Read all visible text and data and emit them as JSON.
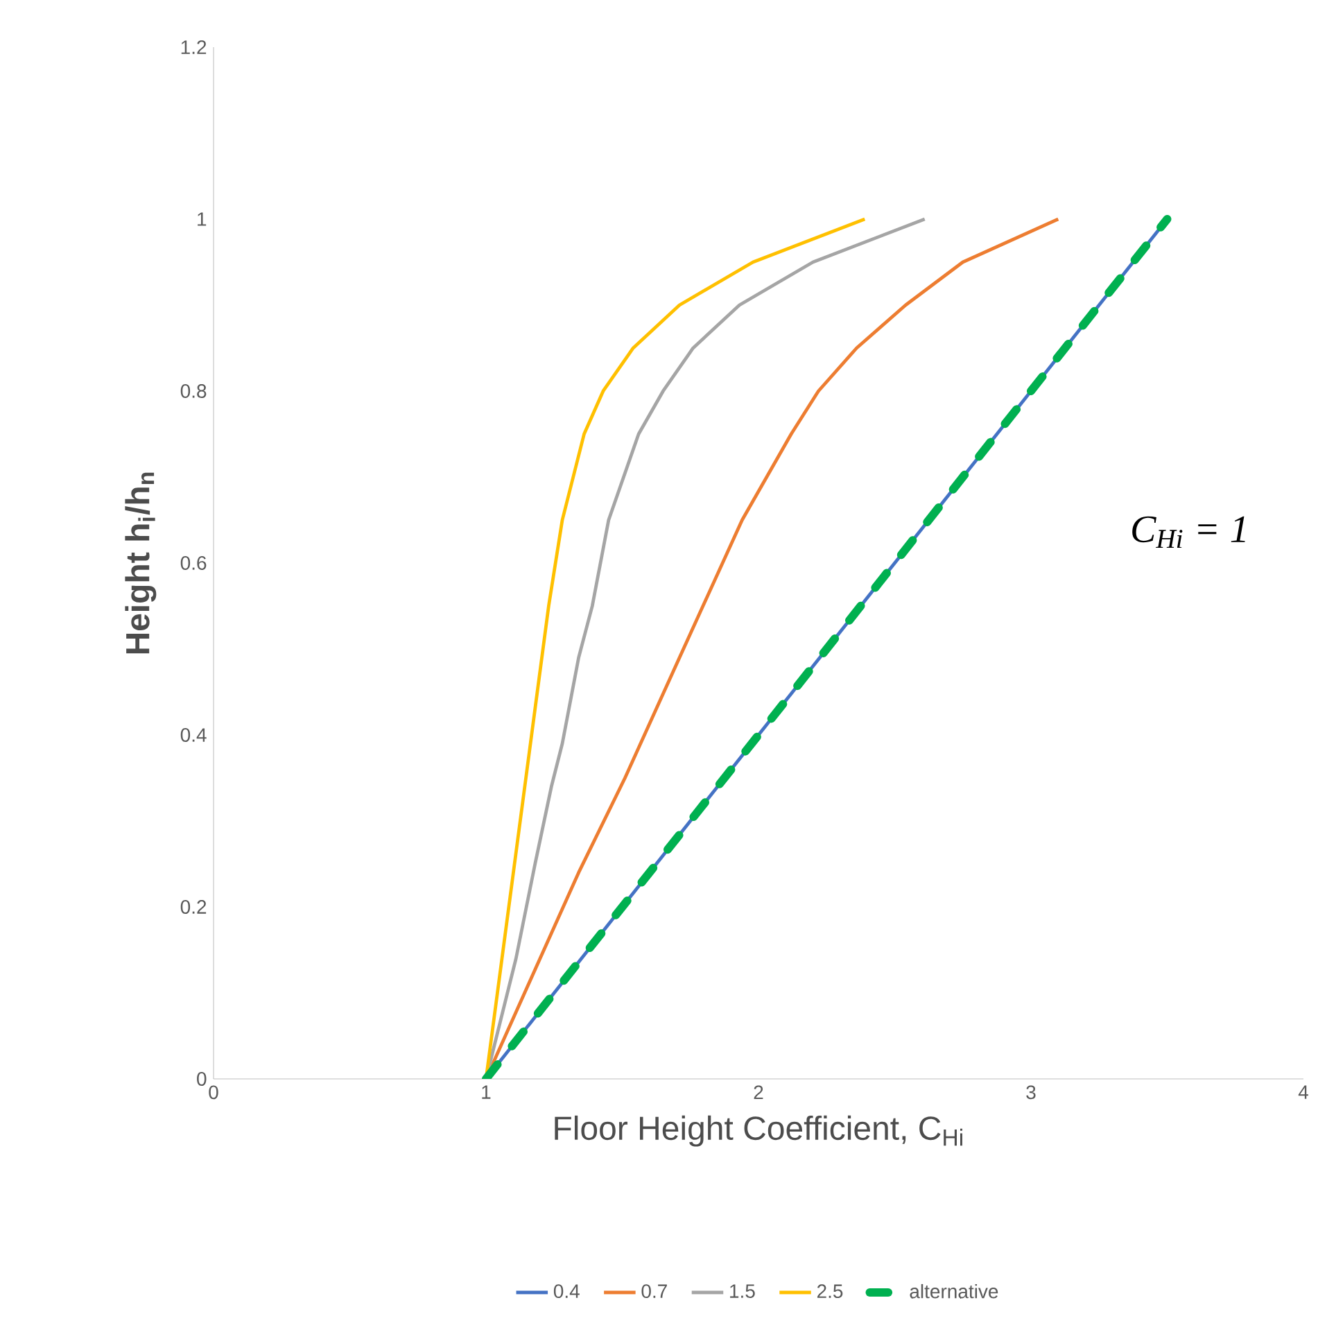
{
  "chart_data": {
    "type": "line",
    "xlabel": "Floor Height Coefficient, C$_{Hi}$",
    "ylabel": "Height h$_{i}$/h$_{n}$",
    "xlim": [
      0,
      4
    ],
    "ylim": [
      0,
      1.2
    ],
    "xticks": [
      0,
      1,
      2,
      3,
      4
    ],
    "yticks": [
      0,
      0.2,
      0.4,
      0.6,
      0.8,
      1,
      1.2
    ],
    "legend": "bottom",
    "marker": "none",
    "annotations": [
      "C$_{Hi}$ = 1"
    ],
    "series": [
      {
        "name": "0.4",
        "color": "#4472c4",
        "x": [
          1,
          3.5
        ],
        "values": [
          0,
          1
        ]
      },
      {
        "name": "0.7",
        "color": "#ed7d31",
        "x": [
          1,
          1.34,
          1.51,
          1.71,
          1.94,
          2.12,
          2.22,
          2.36,
          2.54,
          2.75,
          3.1
        ],
        "values": [
          0,
          0.24,
          0.35,
          0.49,
          0.65,
          0.75,
          0.8,
          0.85,
          0.9,
          0.95,
          1
        ]
      },
      {
        "name": "1.5",
        "color": "#a5a5a5",
        "x": [
          1,
          1.11,
          1.18,
          1.24,
          1.28,
          1.34,
          1.39,
          1.45,
          1.56,
          1.65,
          1.76,
          1.93,
          2.2,
          2.61
        ],
        "values": [
          0,
          0.14,
          0.25,
          0.34,
          0.39,
          0.49,
          0.55,
          0.65,
          0.75,
          0.8,
          0.85,
          0.9,
          0.95,
          1
        ]
      },
      {
        "name": "2.5",
        "color": "#ffc000",
        "x": [
          1,
          1.23,
          1.28,
          1.36,
          1.43,
          1.54,
          1.71,
          1.98,
          2.39
        ],
        "values": [
          0,
          0.55,
          0.65,
          0.75,
          0.8,
          0.85,
          0.9,
          0.95,
          1
        ]
      },
      {
        "name": "alternative",
        "color": "#00b050",
        "line_style": "dashed",
        "x": [
          1,
          3.5
        ],
        "values": [
          0,
          1
        ]
      }
    ]
  }
}
